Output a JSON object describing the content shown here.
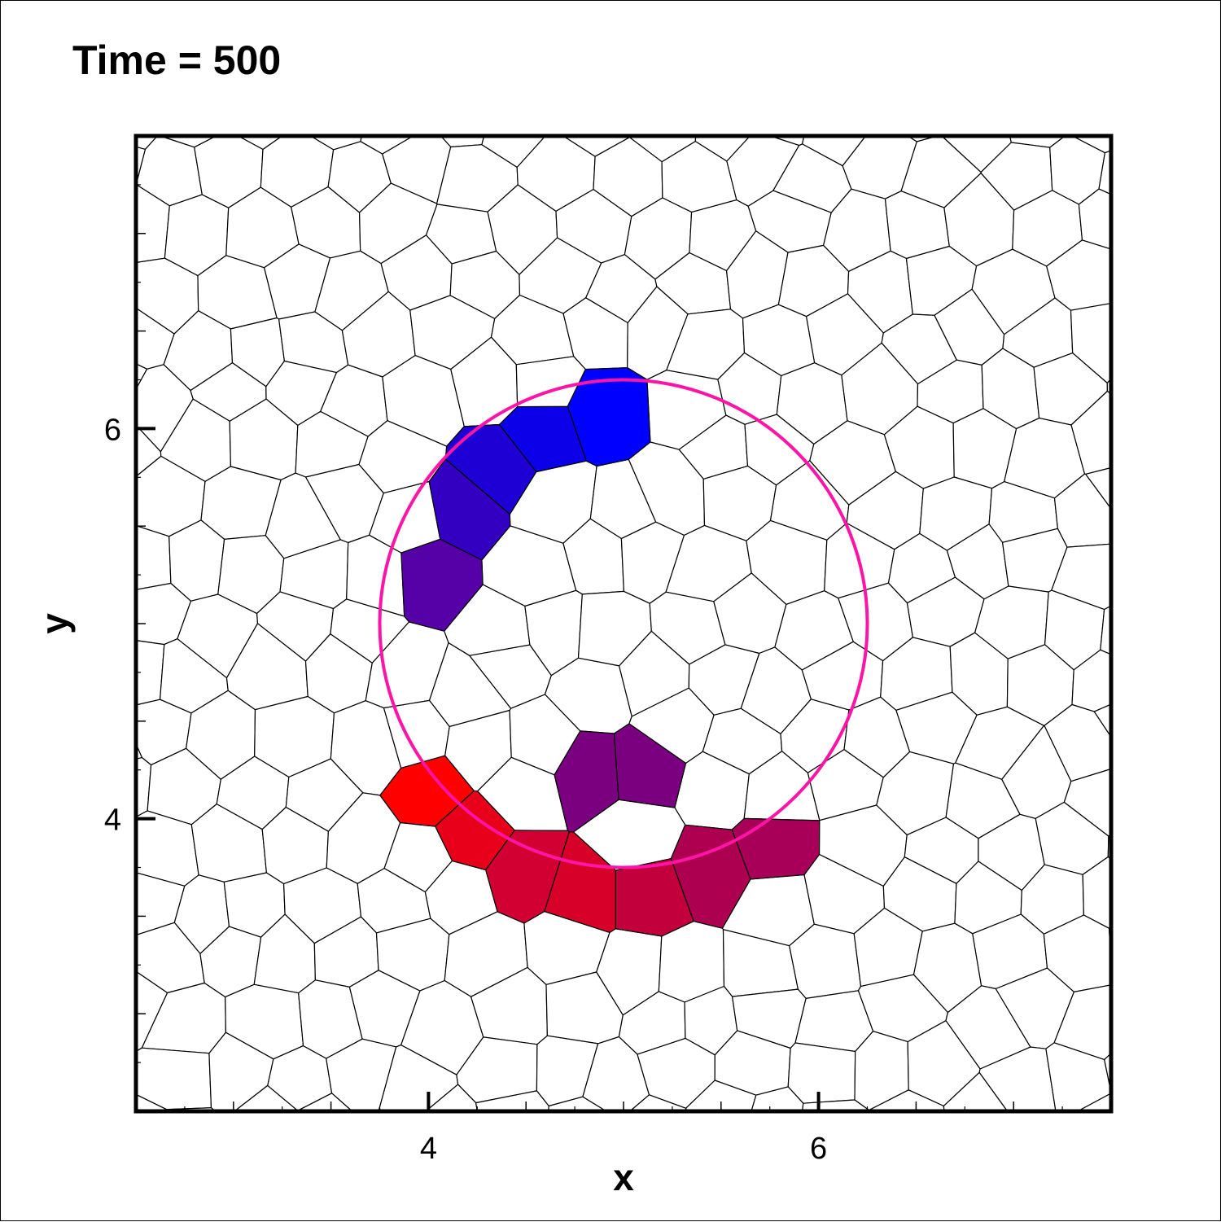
{
  "chart_data": {
    "type": "scatter",
    "title": "Time = 500",
    "xlabel": "x",
    "ylabel": "y",
    "xlim": [
      2.5,
      7.5
    ],
    "ylim": [
      2.5,
      7.5
    ],
    "x_ticks": [
      4,
      6
    ],
    "y_ticks": [
      4,
      6
    ],
    "grid": false,
    "mesh": "voronoi",
    "circle": {
      "cx": 5,
      "cy": 5,
      "r": 1.25,
      "color": "#ff14a6"
    },
    "highlighted_cells": [
      {
        "x": 4.9,
        "y": 6.09,
        "color": "#0000ff"
      },
      {
        "x": 4.58,
        "y": 5.98,
        "color": "#0c00e8"
      },
      {
        "x": 4.35,
        "y": 5.8,
        "color": "#1e00d4"
      },
      {
        "x": 4.17,
        "y": 5.59,
        "color": "#3300c1"
      },
      {
        "x": 4.0,
        "y": 5.25,
        "color": "#5600a8"
      },
      {
        "x": 4.82,
        "y": 4.24,
        "color": "#7a0080"
      },
      {
        "x": 5.11,
        "y": 4.26,
        "color": "#7a0080"
      },
      {
        "x": 4.0,
        "y": 4.15,
        "color": "#ff0000"
      },
      {
        "x": 4.22,
        "y": 3.91,
        "color": "#e8001a"
      },
      {
        "x": 4.48,
        "y": 3.72,
        "color": "#d20032"
      },
      {
        "x": 4.8,
        "y": 3.62,
        "color": "#d60028"
      },
      {
        "x": 5.12,
        "y": 3.62,
        "color": "#c2003c"
      },
      {
        "x": 5.45,
        "y": 3.74,
        "color": "#ad0050"
      },
      {
        "x": 5.77,
        "y": 3.86,
        "color": "#a80058"
      }
    ]
  }
}
